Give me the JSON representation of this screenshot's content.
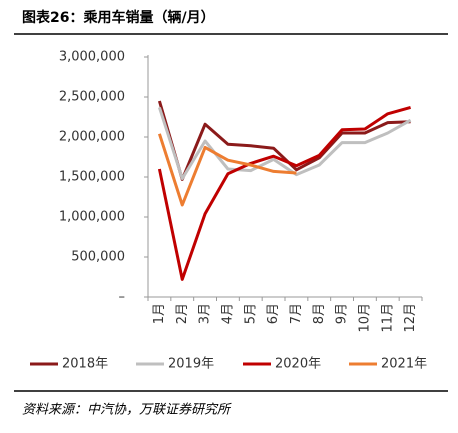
{
  "chart_data": {
    "type": "line",
    "title": "图表26：乘用车销量（辆/月）",
    "categories": [
      "1月",
      "2月",
      "3月",
      "4月",
      "5月",
      "6月",
      "7月",
      "8月",
      "9月",
      "10月",
      "11月",
      "12月"
    ],
    "series": [
      {
        "name": "2018年",
        "color": "#8b1a1a",
        "values": [
          2450000,
          1470000,
          2160000,
          1910000,
          1890000,
          1860000,
          1590000,
          1740000,
          2050000,
          2050000,
          2180000,
          2190000
        ]
      },
      {
        "name": "2019年",
        "color": "#bfbfbf",
        "values": [
          2370000,
          1480000,
          1950000,
          1600000,
          1580000,
          1720000,
          1530000,
          1650000,
          1930000,
          1930000,
          2050000,
          2210000
        ]
      },
      {
        "name": "2020年",
        "color": "#c00000",
        "values": [
          1600000,
          220000,
          1040000,
          1540000,
          1670000,
          1760000,
          1640000,
          1770000,
          2090000,
          2100000,
          2290000,
          2370000
        ]
      },
      {
        "name": "2021年",
        "color": "#ed7d31",
        "values": [
          2040000,
          1150000,
          1870000,
          1710000,
          1650000,
          1570000,
          1550000,
          null,
          null,
          null,
          null,
          null
        ]
      }
    ],
    "ylim": [
      0,
      3000000
    ],
    "yticks": [
      {
        "value": 0,
        "label": "–"
      },
      {
        "value": 500000,
        "label": "500,000"
      },
      {
        "value": 1000000,
        "label": "1,000,000"
      },
      {
        "value": 1500000,
        "label": "1,500,000"
      },
      {
        "value": 2000000,
        "label": "2,000,000"
      },
      {
        "value": 2500000,
        "label": "2,500,000"
      },
      {
        "value": 3000000,
        "label": "3,000,000"
      }
    ],
    "source": "资料来源：中汽协，万联证券研究所"
  }
}
